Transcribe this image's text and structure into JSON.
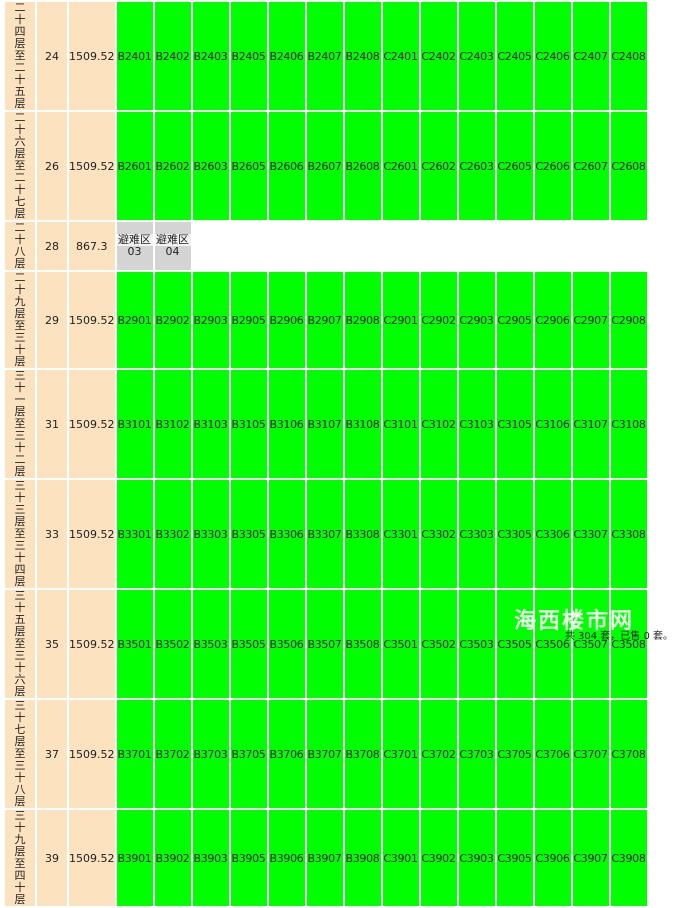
{
  "rows": [
    {
      "floor": "二十四层至二十五层",
      "num": "24",
      "area": "1509.52",
      "h": 73,
      "type": "units",
      "units": [
        "B2401",
        "B2402",
        "B2403",
        "B2405",
        "B2406",
        "B2407",
        "B2408",
        "C2401",
        "C2402",
        "C2403",
        "C2405",
        "C2406",
        "C2407",
        "C2408"
      ]
    },
    {
      "floor": "二十六层至二十七层",
      "num": "26",
      "area": "1509.52",
      "h": 73,
      "type": "units",
      "units": [
        "B2601",
        "B2602",
        "B2603",
        "B2605",
        "B2606",
        "B2607",
        "B2608",
        "C2601",
        "C2602",
        "C2603",
        "C2605",
        "C2606",
        "C2607",
        "C2608"
      ]
    },
    {
      "floor": "二十八层",
      "num": "28",
      "area": "867.3",
      "h": 30,
      "type": "refuge",
      "refuge": [
        {
          "label": "避难区",
          "code": "03"
        },
        {
          "label": "避难区",
          "code": "04"
        }
      ]
    },
    {
      "floor": "二十九层至三十层",
      "num": "29",
      "area": "1509.52",
      "h": 59,
      "type": "units",
      "units": [
        "B2901",
        "B2902",
        "B2903",
        "B2905",
        "B2906",
        "B2907",
        "B2908",
        "C2901",
        "C2902",
        "C2903",
        "C2905",
        "C2906",
        "C2907",
        "C2908"
      ]
    },
    {
      "floor": "三十一层至三十二层",
      "num": "31",
      "area": "1509.52",
      "h": 73,
      "type": "units",
      "units": [
        "B3101",
        "B3102",
        "B3103",
        "B3105",
        "B3106",
        "B3107",
        "B3108",
        "C3101",
        "C3102",
        "C3103",
        "C3105",
        "C3106",
        "C3107",
        "C3108"
      ]
    },
    {
      "floor": "三十三层至三十四层",
      "num": "33",
      "area": "1509.52",
      "h": 73,
      "type": "units",
      "units": [
        "B3301",
        "B3302",
        "B3303",
        "B3305",
        "B3306",
        "B3307",
        "B3308",
        "C3301",
        "C3302",
        "C3303",
        "C3305",
        "C3306",
        "C3307",
        "C3308"
      ]
    },
    {
      "floor": "三十五层至三十六层",
      "num": "35",
      "area": "1509.52",
      "h": 73,
      "type": "units",
      "units": [
        "B3501",
        "B3502",
        "B3503",
        "B3505",
        "B3506",
        "B3507",
        "B3508",
        "C3501",
        "C3502",
        "C3503",
        "C3505",
        "C3506",
        "C3507",
        "C3508"
      ]
    },
    {
      "floor": "三十七层至三十八层",
      "num": "37",
      "area": "1509.52",
      "h": 73,
      "type": "units",
      "units": [
        "B3701",
        "B3702",
        "B3703",
        "B3705",
        "B3706",
        "B3707",
        "B3708",
        "C3701",
        "C3702",
        "C3703",
        "C3705",
        "C3706",
        "C3707",
        "C3708"
      ]
    },
    {
      "floor": "三十九层至四十层",
      "num": "39",
      "area": "1509.52",
      "h": 59,
      "type": "units",
      "units": [
        "B3901",
        "B3902",
        "B3903",
        "B3905",
        "B3906",
        "B3907",
        "B3908",
        "C3901",
        "C3902",
        "C3903",
        "C3905",
        "C3906",
        "C3907",
        "C3908"
      ]
    }
  ],
  "colors": {
    "available": "#00ff00",
    "info": "#fde2c0",
    "refuge": "#d4d4d4"
  },
  "footer": "共 304 套，已售 0 套。",
  "watermark": "海西楼市网"
}
